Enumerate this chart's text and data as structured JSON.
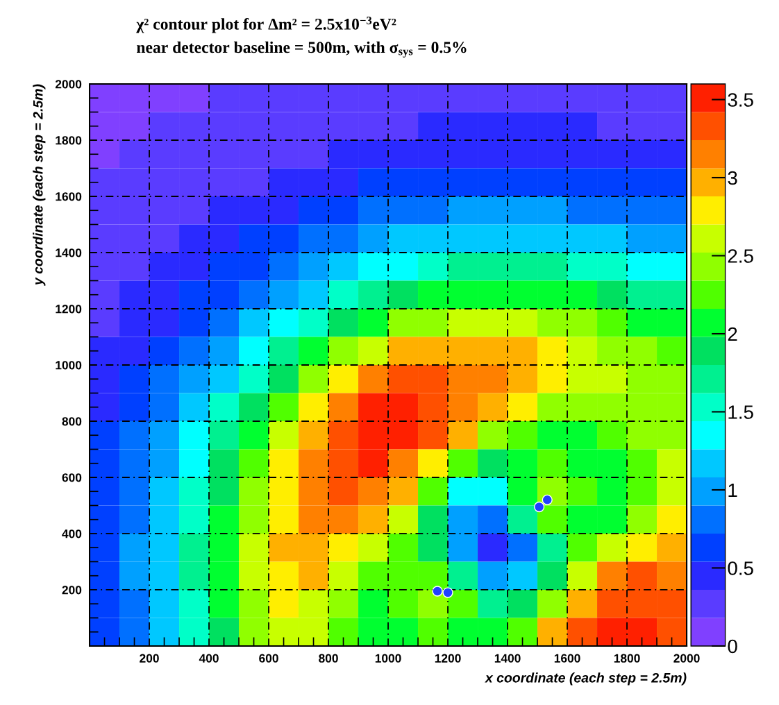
{
  "chart_data": {
    "type": "heatmap",
    "title": "χ² contour plot for Δm² = 2.5x10$^{−3}$eV²",
    "subtitle": "near detector baseline = 500m, with σ$_{sys}$ = 0.5%",
    "xlabel": "x coordinate (each step = 2.5m)",
    "ylabel": "y coordinate (each step = 2.5m)",
    "x": [
      50,
      150,
      250,
      350,
      450,
      550,
      650,
      750,
      850,
      950,
      1050,
      1150,
      1250,
      1350,
      1450,
      1550,
      1650,
      1750,
      1850,
      1950
    ],
    "y": [
      1950,
      1850,
      1750,
      1650,
      1550,
      1450,
      1350,
      1250,
      1150,
      1050,
      950,
      850,
      750,
      650,
      550,
      450,
      350,
      250,
      150,
      50
    ],
    "cells": [
      [
        0.11,
        0.14,
        0.16,
        0.17,
        0.2,
        0.23,
        0.25,
        0.27,
        0.28,
        0.29,
        0.3,
        0.31,
        0.31,
        0.32,
        0.32,
        0.31,
        0.31,
        0.3,
        0.3,
        0.29
      ],
      [
        0.14,
        0.17,
        0.19,
        0.21,
        0.24,
        0.27,
        0.29,
        0.3,
        0.31,
        0.32,
        0.34,
        0.36,
        0.37,
        0.38,
        0.39,
        0.38,
        0.37,
        0.35,
        0.34,
        0.33
      ],
      [
        0.17,
        0.2,
        0.23,
        0.26,
        0.28,
        0.31,
        0.32,
        0.35,
        0.38,
        0.4,
        0.43,
        0.46,
        0.49,
        0.5,
        0.5,
        0.5,
        0.48,
        0.45,
        0.43,
        0.41
      ],
      [
        0.2,
        0.24,
        0.26,
        0.29,
        0.32,
        0.34,
        0.38,
        0.44,
        0.49,
        0.55,
        0.6,
        0.64,
        0.67,
        0.69,
        0.69,
        0.67,
        0.65,
        0.62,
        0.59,
        0.55
      ],
      [
        0.24,
        0.27,
        0.3,
        0.33,
        0.36,
        0.42,
        0.49,
        0.57,
        0.66,
        0.74,
        0.81,
        0.87,
        0.91,
        0.94,
        0.94,
        0.92,
        0.88,
        0.84,
        0.8,
        0.74
      ],
      [
        0.26,
        0.3,
        0.33,
        0.37,
        0.44,
        0.54,
        0.64,
        0.76,
        0.87,
        0.99,
        1.09,
        1.17,
        1.22,
        1.25,
        1.25,
        1.23,
        1.18,
        1.12,
        1.07,
        0.99
      ],
      [
        0.29,
        0.33,
        0.37,
        0.45,
        0.56,
        0.68,
        0.83,
        0.98,
        1.14,
        1.28,
        1.43,
        1.54,
        1.62,
        1.65,
        1.66,
        1.62,
        1.56,
        1.47,
        1.39,
        1.28
      ],
      [
        0.32,
        0.36,
        0.44,
        0.56,
        0.7,
        0.87,
        1.05,
        1.25,
        1.46,
        1.65,
        1.84,
        1.99,
        2.08,
        2.12,
        2.12,
        2.08,
        2.0,
        1.9,
        1.79,
        1.65
      ],
      [
        0.35,
        0.42,
        0.53,
        0.68,
        0.86,
        1.08,
        1.32,
        1.58,
        1.86,
        2.13,
        2.36,
        2.51,
        2.58,
        2.59,
        2.56,
        2.5,
        2.38,
        2.25,
        2.12,
        1.98
      ],
      [
        0.38,
        0.49,
        0.64,
        0.82,
        1.05,
        1.32,
        1.64,
        2.01,
        2.35,
        2.66,
        2.89,
        3.01,
        3.02,
        2.98,
        2.91,
        2.79,
        2.62,
        2.49,
        2.37,
        2.25
      ],
      [
        0.43,
        0.57,
        0.75,
        0.98,
        1.24,
        1.56,
        1.97,
        2.44,
        2.83,
        3.12,
        3.3,
        3.3,
        3.21,
        3.13,
        3.04,
        2.86,
        2.68,
        2.56,
        2.5,
        2.45
      ],
      [
        0.49,
        0.64,
        0.86,
        1.12,
        1.44,
        1.83,
        2.28,
        2.79,
        3.2,
        3.42,
        3.49,
        3.36,
        3.14,
        2.94,
        2.72,
        2.5,
        2.39,
        2.4,
        2.45,
        2.5
      ],
      [
        0.54,
        0.73,
        0.97,
        1.26,
        1.63,
        2.06,
        2.56,
        3.05,
        3.38,
        3.52,
        3.47,
        3.25,
        2.9,
        2.51,
        2.24,
        2.12,
        2.11,
        2.2,
        2.35,
        2.5
      ],
      [
        0.59,
        0.8,
        1.07,
        1.4,
        1.81,
        2.25,
        2.73,
        3.16,
        3.4,
        3.46,
        3.23,
        2.74,
        2.21,
        1.92,
        2.06,
        2.22,
        2.12,
        2.08,
        2.29,
        2.55
      ],
      [
        0.62,
        0.85,
        1.14,
        1.52,
        1.96,
        2.4,
        2.83,
        3.16,
        3.29,
        3.23,
        2.88,
        2.16,
        1.41,
        1.39,
        2.12,
        2.47,
        2.2,
        2.03,
        2.29,
        2.69
      ],
      [
        0.65,
        0.89,
        1.19,
        1.58,
        2.05,
        2.49,
        2.87,
        3.1,
        3.07,
        2.88,
        2.52,
        1.85,
        0.93,
        0.77,
        1.62,
        2.18,
        2.12,
        2.11,
        2.41,
        2.83
      ],
      [
        0.67,
        0.91,
        1.22,
        1.62,
        2.09,
        2.53,
        2.9,
        3.02,
        2.84,
        2.54,
        2.26,
        1.83,
        0.96,
        0.38,
        0.85,
        1.73,
        2.26,
        2.6,
        2.85,
        2.98
      ],
      [
        0.67,
        0.91,
        1.22,
        1.62,
        2.08,
        2.52,
        2.87,
        2.88,
        2.56,
        2.24,
        2.21,
        2.28,
        1.78,
        1.0,
        1.09,
        1.95,
        2.68,
        3.13,
        3.27,
        3.19
      ],
      [
        0.65,
        0.88,
        1.19,
        1.57,
        2.04,
        2.48,
        2.76,
        2.69,
        2.35,
        2.08,
        2.19,
        2.49,
        2.3,
        1.76,
        1.84,
        2.48,
        3.02,
        3.36,
        3.4,
        3.29
      ],
      [
        0.62,
        0.84,
        1.13,
        1.49,
        1.95,
        2.39,
        2.62,
        2.57,
        2.3,
        2.06,
        2.1,
        2.24,
        2.15,
        2.0,
        2.31,
        2.93,
        3.34,
        3.5,
        3.44,
        3.33
      ]
    ],
    "clim": [
      0,
      3.6
    ],
    "cticks": [
      0,
      0.5,
      1,
      1.5,
      2,
      2.5,
      3,
      3.5
    ],
    "series": [
      {
        "type": "scatter",
        "x": [
          1165,
          1200,
          1506,
          1533
        ],
        "values": [
          195,
          190,
          495,
          520
        ],
        "color": "#2040ff",
        "marker": "circle"
      }
    ],
    "xlim": [
      0,
      2000
    ],
    "ylim": [
      0,
      2000
    ],
    "xticks": [
      {
        "value": 50,
        "label": null
      },
      {
        "value": 100,
        "label": null
      },
      {
        "value": 150,
        "label": null
      },
      200,
      {
        "value": 250,
        "label": null
      },
      {
        "value": 300,
        "label": null
      },
      {
        "value": 350,
        "label": null
      },
      400,
      {
        "value": 450,
        "label": null
      },
      {
        "value": 500,
        "label": null
      },
      {
        "value": 550,
        "label": null
      },
      600,
      {
        "value": 650,
        "label": null
      },
      {
        "value": 700,
        "label": null
      },
      {
        "value": 750,
        "label": null
      },
      800,
      {
        "value": 850,
        "label": null
      },
      {
        "value": 900,
        "label": null
      },
      {
        "value": 950,
        "label": null
      },
      1000,
      {
        "value": 1050,
        "label": null
      },
      {
        "value": 1100,
        "label": null
      },
      {
        "value": 1150,
        "label": null
      },
      1200,
      {
        "value": 1250,
        "label": null
      },
      {
        "value": 1300,
        "label": null
      },
      {
        "value": 1350,
        "label": null
      },
      1400,
      {
        "value": 1450,
        "label": null
      },
      {
        "value": 1500,
        "label": null
      },
      {
        "value": 1550,
        "label": null
      },
      1600,
      {
        "value": 1650,
        "label": null
      },
      {
        "value": 1700,
        "label": null
      },
      {
        "value": 1750,
        "label": null
      },
      1800,
      {
        "value": 1850,
        "label": null
      },
      {
        "value": 1900,
        "label": null
      },
      {
        "value": 1950,
        "label": null
      },
      2000
    ],
    "yticks": [
      {
        "value": 50,
        "label": null
      },
      {
        "value": 100,
        "label": null
      },
      {
        "value": 150,
        "label": null
      },
      200,
      {
        "value": 250,
        "label": null
      },
      {
        "value": 300,
        "label": null
      },
      {
        "value": 350,
        "label": null
      },
      400,
      {
        "value": 450,
        "label": null
      },
      {
        "value": 500,
        "label": null
      },
      {
        "value": 550,
        "label": null
      },
      600,
      {
        "value": 650,
        "label": null
      },
      {
        "value": 700,
        "label": null
      },
      {
        "value": 750,
        "label": null
      },
      800,
      {
        "value": 850,
        "label": null
      },
      {
        "value": 900,
        "label": null
      },
      {
        "value": 950,
        "label": null
      },
      1000,
      {
        "value": 1050,
        "label": null
      },
      {
        "value": 1100,
        "label": null
      },
      {
        "value": 1150,
        "label": null
      },
      1200,
      {
        "value": 1250,
        "label": null
      },
      {
        "value": 1300,
        "label": null
      },
      {
        "value": 1350,
        "label": null
      },
      1400,
      {
        "value": 1450,
        "label": null
      },
      {
        "value": 1500,
        "label": null
      },
      {
        "value": 1550,
        "label": null
      },
      1600,
      {
        "value": 1650,
        "label": null
      },
      {
        "value": 1700,
        "label": null
      },
      {
        "value": 1750,
        "label": null
      },
      1800,
      {
        "value": 1850,
        "label": null
      },
      {
        "value": 1900,
        "label": null
      },
      {
        "value": 1950,
        "label": null
      },
      2000
    ],
    "grid": true
  }
}
